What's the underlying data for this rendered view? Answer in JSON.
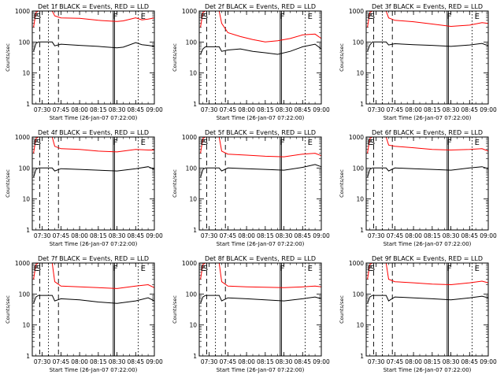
{
  "chart_data": [
    {
      "type": "line",
      "title": "Det 1f BLACK = Events, RED = LLD",
      "ylabel": "Counts/sec",
      "xlabel": "Start Time (26-Jan-07 07:22:00)",
      "x_ticks": [
        "07:30",
        "07:45",
        "08:00",
        "08:15",
        "08:30",
        "08:45",
        "09:00"
      ],
      "xlim": [
        "07:22",
        "09:00"
      ],
      "y_ticks": [
        "1",
        "10",
        "100",
        "1000"
      ],
      "ylim": [
        1,
        1000
      ],
      "y_scale": "log",
      "markers": [
        "E",
        "S",
        "F",
        "E"
      ],
      "series": [
        {
          "color": "#ff0000",
          "x": [
            "07:23",
            "07:25",
            "07:27",
            "07:36",
            "07:38",
            "07:40",
            "07:45",
            "08:00",
            "08:15",
            "08:30",
            "08:35",
            "08:45",
            "08:50",
            "08:55",
            "09:00"
          ],
          "y": [
            300,
            900,
            1000,
            1000,
            1000,
            700,
            600,
            580,
            500,
            460,
            480,
            600,
            520,
            550,
            600
          ]
        },
        {
          "color": "#000000",
          "x": [
            "07:23",
            "07:25",
            "07:27",
            "07:38",
            "07:40",
            "07:45",
            "08:00",
            "08:15",
            "08:30",
            "08:35",
            "08:45",
            "08:50",
            "08:55",
            "09:00"
          ],
          "y": [
            50,
            90,
            100,
            100,
            75,
            85,
            78,
            72,
            65,
            68,
            95,
            82,
            78,
            72
          ]
        }
      ]
    },
    {
      "type": "line",
      "title": "Det 2f BLACK = Events, RED = LLD",
      "ylabel": "Counts/sec",
      "xlabel": "Start Time (26-Jan-07 07:22:00)",
      "x_ticks": [
        "07:30",
        "07:45",
        "08:00",
        "08:15",
        "08:30",
        "08:45",
        "09:00"
      ],
      "xlim": [
        "07:22",
        "09:00"
      ],
      "y_ticks": [
        "1",
        "10",
        "100",
        "1000"
      ],
      "ylim": [
        1,
        1000
      ],
      "y_scale": "log",
      "markers": [
        "E",
        "S",
        "F",
        "E"
      ],
      "series": [
        {
          "color": "#ff0000",
          "x": [
            "07:23",
            "07:25",
            "07:27",
            "07:36",
            "07:38",
            "07:40",
            "07:45",
            "07:55",
            "08:05",
            "08:15",
            "08:25",
            "08:35",
            "08:45",
            "08:55",
            "09:00"
          ],
          "y": [
            300,
            900,
            1000,
            1000,
            1000,
            400,
            200,
            150,
            120,
            100,
            110,
            130,
            170,
            180,
            130
          ]
        },
        {
          "color": "#000000",
          "x": [
            "07:23",
            "07:25",
            "07:27",
            "07:38",
            "07:40",
            "07:45",
            "07:55",
            "08:05",
            "08:15",
            "08:25",
            "08:35",
            "08:45",
            "08:55",
            "09:00"
          ],
          "y": [
            40,
            60,
            70,
            70,
            50,
            55,
            60,
            50,
            45,
            40,
            50,
            70,
            85,
            60
          ]
        }
      ]
    },
    {
      "type": "line",
      "title": "Det 3f BLACK = Events, RED = LLD",
      "ylabel": "Counts/sec",
      "xlabel": "Start Time (26-Jan-07 07:22:00)",
      "x_ticks": [
        "07:30",
        "07:45",
        "08:00",
        "08:15",
        "08:30",
        "08:45",
        "09:00"
      ],
      "xlim": [
        "07:22",
        "09:00"
      ],
      "y_ticks": [
        "1",
        "10",
        "100",
        "1000"
      ],
      "ylim": [
        1,
        1000
      ],
      "y_scale": "log",
      "markers": [
        "E",
        "S",
        "F",
        "E"
      ],
      "series": [
        {
          "color": "#ff0000",
          "x": [
            "07:23",
            "07:25",
            "07:27",
            "07:36",
            "07:38",
            "07:40",
            "07:45",
            "08:00",
            "08:15",
            "08:30",
            "08:45",
            "08:55",
            "09:00"
          ],
          "y": [
            300,
            900,
            1000,
            1000,
            1000,
            600,
            500,
            450,
            380,
            320,
            350,
            420,
            400
          ]
        },
        {
          "color": "#000000",
          "x": [
            "07:23",
            "07:25",
            "07:27",
            "07:38",
            "07:40",
            "07:45",
            "08:00",
            "08:15",
            "08:30",
            "08:45",
            "08:55",
            "09:00"
          ],
          "y": [
            50,
            80,
            100,
            100,
            80,
            88,
            82,
            78,
            72,
            80,
            90,
            75
          ]
        }
      ]
    },
    {
      "type": "line",
      "title": "Det 4f BLACK = Events, RED = LLD",
      "ylabel": "Counts/sec",
      "xlabel": "Start Time (26-Jan-07 07:22:00)",
      "x_ticks": [
        "07:30",
        "07:45",
        "08:00",
        "08:15",
        "08:30",
        "08:45",
        "09:00"
      ],
      "xlim": [
        "07:22",
        "09:00"
      ],
      "y_ticks": [
        "1",
        "10",
        "100",
        "1000"
      ],
      "ylim": [
        1,
        1000
      ],
      "y_scale": "log",
      "markers": [
        "E",
        "S",
        "F",
        "E"
      ],
      "series": [
        {
          "color": "#ff0000",
          "x": [
            "07:23",
            "07:25",
            "07:27",
            "07:36",
            "07:38",
            "07:40",
            "07:45",
            "08:00",
            "08:15",
            "08:30",
            "08:45",
            "08:55",
            "09:00"
          ],
          "y": [
            300,
            900,
            1000,
            1000,
            1000,
            500,
            420,
            400,
            350,
            330,
            400,
            380,
            380
          ]
        },
        {
          "color": "#000000",
          "x": [
            "07:23",
            "07:25",
            "07:27",
            "07:38",
            "07:40",
            "07:45",
            "08:00",
            "08:15",
            "08:30",
            "08:45",
            "08:55",
            "09:00"
          ],
          "y": [
            50,
            90,
            100,
            100,
            80,
            95,
            90,
            85,
            80,
            95,
            110,
            90
          ]
        }
      ]
    },
    {
      "type": "line",
      "title": "Det 5f BLACK = Events, RED = LLD",
      "ylabel": "Counts/sec",
      "xlabel": "Start Time (26-Jan-07 07:22:00)",
      "x_ticks": [
        "07:30",
        "07:45",
        "08:00",
        "08:15",
        "08:30",
        "08:45",
        "09:00"
      ],
      "xlim": [
        "07:22",
        "09:00"
      ],
      "y_ticks": [
        "1",
        "10",
        "100",
        "1000"
      ],
      "ylim": [
        1,
        1000
      ],
      "y_scale": "log",
      "markers": [
        "E",
        "S",
        "F",
        "E"
      ],
      "series": [
        {
          "color": "#ff0000",
          "x": [
            "07:23",
            "07:25",
            "07:27",
            "07:36",
            "07:38",
            "07:40",
            "07:45",
            "08:00",
            "08:15",
            "08:30",
            "08:45",
            "08:55",
            "09:00"
          ],
          "y": [
            300,
            900,
            1000,
            1000,
            1000,
            350,
            280,
            260,
            240,
            230,
            280,
            300,
            250
          ]
        },
        {
          "color": "#000000",
          "x": [
            "07:23",
            "07:25",
            "07:27",
            "07:38",
            "07:40",
            "07:45",
            "08:00",
            "08:15",
            "08:30",
            "08:45",
            "08:55",
            "09:00"
          ],
          "y": [
            50,
            90,
            100,
            100,
            80,
            100,
            95,
            90,
            85,
            105,
            130,
            110
          ]
        }
      ]
    },
    {
      "type": "line",
      "title": "Det 6f BLACK = Events, RED = LLD",
      "ylabel": "Counts/sec",
      "xlabel": "Start Time (26-Jan-07 07:22:00)",
      "x_ticks": [
        "07:30",
        "07:45",
        "08:00",
        "08:15",
        "08:30",
        "08:45",
        "09:00"
      ],
      "xlim": [
        "07:22",
        "09:00"
      ],
      "y_ticks": [
        "1",
        "10",
        "100",
        "1000"
      ],
      "ylim": [
        1,
        1000
      ],
      "y_scale": "log",
      "markers": [
        "E",
        "S",
        "F",
        "E"
      ],
      "series": [
        {
          "color": "#ff0000",
          "x": [
            "07:23",
            "07:25",
            "07:27",
            "07:36",
            "07:38",
            "07:40",
            "07:45",
            "08:00",
            "08:15",
            "08:30",
            "08:45",
            "08:55",
            "09:00"
          ],
          "y": [
            300,
            900,
            1000,
            1000,
            1000,
            550,
            500,
            450,
            400,
            380,
            400,
            420,
            350
          ]
        },
        {
          "color": "#000000",
          "x": [
            "07:23",
            "07:25",
            "07:27",
            "07:38",
            "07:40",
            "07:45",
            "08:00",
            "08:15",
            "08:30",
            "08:45",
            "08:55",
            "09:00"
          ],
          "y": [
            50,
            90,
            100,
            100,
            80,
            100,
            95,
            90,
            85,
            100,
            110,
            95
          ]
        }
      ]
    },
    {
      "type": "line",
      "title": "Det 7f BLACK = Events, RED = LLD",
      "ylabel": "Counts/sec",
      "xlabel": "Start Time (26-Jan-07 07:22:00)",
      "x_ticks": [
        "07:30",
        "07:45",
        "08:00",
        "08:15",
        "08:30",
        "08:45",
        "09:00"
      ],
      "xlim": [
        "07:22",
        "09:00"
      ],
      "y_ticks": [
        "1",
        "10",
        "100",
        "1000"
      ],
      "ylim": [
        1,
        1000
      ],
      "y_scale": "log",
      "markers": [
        "E",
        "S",
        "F",
        "E"
      ],
      "series": [
        {
          "color": "#ff0000",
          "x": [
            "07:23",
            "07:25",
            "07:27",
            "07:36",
            "07:38",
            "07:40",
            "07:45",
            "08:00",
            "08:15",
            "08:30",
            "08:45",
            "08:55",
            "09:00"
          ],
          "y": [
            300,
            900,
            1000,
            1000,
            1000,
            250,
            180,
            170,
            160,
            150,
            180,
            200,
            160
          ]
        },
        {
          "color": "#000000",
          "x": [
            "07:23",
            "07:25",
            "07:27",
            "07:38",
            "07:40",
            "07:45",
            "08:00",
            "08:15",
            "08:30",
            "08:45",
            "08:55",
            "09:00"
          ],
          "y": [
            50,
            80,
            90,
            90,
            60,
            70,
            65,
            55,
            50,
            60,
            75,
            60
          ]
        }
      ]
    },
    {
      "type": "line",
      "title": "Det 8f BLACK = Events, RED = LLD",
      "ylabel": "Counts/sec",
      "xlabel": "Start Time (26-Jan-07 07:22:00)",
      "x_ticks": [
        "07:30",
        "07:45",
        "08:00",
        "08:15",
        "08:30",
        "08:45",
        "09:00"
      ],
      "xlim": [
        "07:22",
        "09:00"
      ],
      "y_ticks": [
        "1",
        "10",
        "100",
        "1000"
      ],
      "ylim": [
        1,
        1000
      ],
      "y_scale": "log",
      "markers": [
        "E",
        "S",
        "F",
        "E"
      ],
      "series": [
        {
          "color": "#ff0000",
          "x": [
            "07:23",
            "07:25",
            "07:27",
            "07:36",
            "07:38",
            "07:40",
            "07:45",
            "08:00",
            "08:15",
            "08:30",
            "08:45",
            "08:55",
            "09:00"
          ],
          "y": [
            300,
            900,
            1000,
            1000,
            1000,
            250,
            180,
            170,
            165,
            160,
            170,
            180,
            170
          ]
        },
        {
          "color": "#000000",
          "x": [
            "07:23",
            "07:25",
            "07:27",
            "07:38",
            "07:40",
            "07:45",
            "08:00",
            "08:15",
            "08:30",
            "08:45",
            "08:55",
            "09:00"
          ],
          "y": [
            50,
            80,
            90,
            90,
            60,
            75,
            70,
            65,
            60,
            70,
            80,
            70
          ]
        }
      ]
    },
    {
      "type": "line",
      "title": "Det 9f BLACK = Events, RED = LLD",
      "ylabel": "Counts/sec",
      "xlabel": "Start Time (26-Jan-07 07:22:00)",
      "x_ticks": [
        "07:30",
        "07:45",
        "08:00",
        "08:15",
        "08:30",
        "08:45",
        "09:00"
      ],
      "xlim": [
        "07:22",
        "09:00"
      ],
      "y_ticks": [
        "1",
        "10",
        "100",
        "1000"
      ],
      "ylim": [
        1,
        1000
      ],
      "y_scale": "log",
      "markers": [
        "E",
        "S",
        "F",
        "E"
      ],
      "series": [
        {
          "color": "#ff0000",
          "x": [
            "07:23",
            "07:25",
            "07:27",
            "07:36",
            "07:38",
            "07:40",
            "07:45",
            "08:00",
            "08:15",
            "08:30",
            "08:45",
            "08:55",
            "09:00"
          ],
          "y": [
            300,
            900,
            1000,
            1000,
            1000,
            300,
            250,
            230,
            210,
            200,
            230,
            260,
            230
          ]
        },
        {
          "color": "#000000",
          "x": [
            "07:23",
            "07:25",
            "07:27",
            "07:38",
            "07:40",
            "07:45",
            "08:00",
            "08:15",
            "08:30",
            "08:45",
            "08:55",
            "09:00"
          ],
          "y": [
            50,
            80,
            90,
            90,
            60,
            80,
            75,
            70,
            65,
            75,
            85,
            75
          ]
        }
      ]
    }
  ],
  "vlines": [
    {
      "time": "07:28",
      "style": "dashed"
    },
    {
      "time": "07:35",
      "style": "dotted"
    },
    {
      "time": "07:43",
      "style": "dashed"
    },
    {
      "time": "08:27",
      "style": "solid"
    },
    {
      "time": "08:28",
      "style": "solid"
    },
    {
      "time": "08:47",
      "style": "dotted"
    }
  ]
}
